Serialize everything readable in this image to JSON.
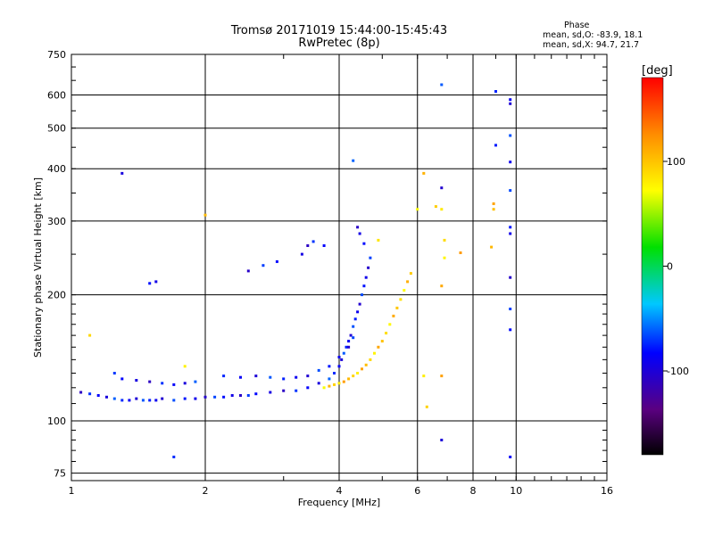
{
  "header": {
    "title_line1": "Tromsø 20171019 15:44:00-15:45:43",
    "title_line2": "RwPretec (8p)"
  },
  "phase_info": {
    "heading": "Phase",
    "line_o": "mean, sd,O: -83.9, 18.1",
    "line_x": "mean, sd,X:  94.7, 21.7"
  },
  "chart_data": {
    "type": "scatter",
    "xlabel": "Frequency [MHz]",
    "ylabel": "Stationary phase Virtual Height [km]",
    "x_scale": "log",
    "y_scale": "log",
    "xlim": [
      1,
      16
    ],
    "ylim": [
      72,
      750
    ],
    "x_ticks": [
      1,
      2,
      4,
      6,
      8,
      10,
      16
    ],
    "x_tick_labels": [
      "1",
      "2",
      "4",
      "6",
      "8",
      "10",
      "16"
    ],
    "y_ticks": [
      75,
      100,
      200,
      300,
      400,
      500,
      600,
      750
    ],
    "y_tick_labels": [
      "75",
      "100",
      "200",
      "300",
      "400",
      "500",
      "600",
      "750"
    ],
    "grid": true,
    "colorbar": {
      "label": "[deg]",
      "range": [
        -180,
        180
      ],
      "ticks": [
        -100,
        0,
        100
      ],
      "tick_labels": [
        "-100",
        "0",
        "100"
      ],
      "colormap": "rainbow (black → purple → blue → cyan → green → yellow → orange → red)"
    },
    "series": [
      {
        "mode": "O",
        "color_value_deg": -84,
        "points": [
          [
            1.05,
            117
          ],
          [
            1.1,
            116
          ],
          [
            1.15,
            115
          ],
          [
            1.2,
            114
          ],
          [
            1.25,
            113
          ],
          [
            1.3,
            112
          ],
          [
            1.35,
            112
          ],
          [
            1.4,
            113
          ],
          [
            1.45,
            112
          ],
          [
            1.5,
            112
          ],
          [
            1.55,
            112
          ],
          [
            1.6,
            113
          ],
          [
            1.7,
            112
          ],
          [
            1.8,
            113
          ],
          [
            1.9,
            113
          ],
          [
            2.0,
            114
          ],
          [
            2.1,
            114
          ],
          [
            2.2,
            114
          ],
          [
            2.3,
            115
          ],
          [
            2.4,
            115
          ],
          [
            2.5,
            115
          ],
          [
            2.6,
            116
          ],
          [
            2.8,
            117
          ],
          [
            3.0,
            118
          ],
          [
            3.2,
            118
          ],
          [
            3.4,
            120
          ],
          [
            3.6,
            123
          ],
          [
            3.8,
            126
          ],
          [
            3.9,
            130
          ],
          [
            4.0,
            135
          ],
          [
            4.05,
            140
          ],
          [
            4.1,
            145
          ],
          [
            4.15,
            150
          ],
          [
            4.2,
            155
          ],
          [
            4.25,
            160
          ],
          [
            4.3,
            168
          ],
          [
            4.35,
            175
          ],
          [
            4.4,
            182
          ],
          [
            4.45,
            190
          ],
          [
            4.5,
            200
          ],
          [
            4.55,
            210
          ],
          [
            4.6,
            220
          ],
          [
            4.65,
            232
          ],
          [
            4.7,
            245
          ],
          [
            4.55,
            265
          ],
          [
            4.45,
            280
          ],
          [
            4.4,
            290
          ],
          [
            1.25,
            130
          ],
          [
            1.3,
            126
          ],
          [
            1.4,
            125
          ],
          [
            1.5,
            124
          ],
          [
            1.6,
            123
          ],
          [
            1.7,
            122
          ],
          [
            1.8,
            123
          ],
          [
            1.9,
            124
          ],
          [
            2.2,
            128
          ],
          [
            2.4,
            127
          ],
          [
            2.6,
            128
          ],
          [
            2.8,
            127
          ],
          [
            3.0,
            126
          ],
          [
            3.2,
            127
          ],
          [
            3.4,
            128
          ],
          [
            3.6,
            132
          ],
          [
            3.8,
            135
          ],
          [
            4.0,
            142
          ],
          [
            4.2,
            150
          ],
          [
            4.3,
            158
          ],
          [
            1.5,
            213
          ],
          [
            1.55,
            215
          ],
          [
            2.5,
            228
          ],
          [
            2.7,
            235
          ],
          [
            2.9,
            240
          ],
          [
            3.3,
            250
          ],
          [
            3.4,
            262
          ],
          [
            3.5,
            268
          ],
          [
            3.7,
            262
          ],
          [
            1.3,
            390
          ],
          [
            4.3,
            418
          ],
          [
            1.7,
            82
          ],
          [
            9.7,
            82
          ],
          [
            6.8,
            90
          ],
          [
            6.8,
            635
          ],
          [
            9.0,
            612
          ],
          [
            9.7,
            585
          ],
          [
            9.7,
            572
          ],
          [
            9.7,
            480
          ],
          [
            9.0,
            455
          ],
          [
            9.7,
            415
          ],
          [
            6.8,
            360
          ],
          [
            9.7,
            355
          ],
          [
            9.7,
            290
          ],
          [
            9.7,
            280
          ],
          [
            9.7,
            220
          ],
          [
            9.7,
            185
          ],
          [
            9.7,
            165
          ]
        ]
      },
      {
        "mode": "X",
        "color_value_deg": 95,
        "points": [
          [
            3.7,
            120
          ],
          [
            3.8,
            121
          ],
          [
            3.9,
            122
          ],
          [
            4.0,
            123
          ],
          [
            4.1,
            124
          ],
          [
            4.2,
            126
          ],
          [
            4.3,
            128
          ],
          [
            4.4,
            130
          ],
          [
            4.5,
            133
          ],
          [
            4.6,
            136
          ],
          [
            4.7,
            140
          ],
          [
            4.8,
            145
          ],
          [
            4.9,
            150
          ],
          [
            5.0,
            155
          ],
          [
            5.1,
            162
          ],
          [
            5.2,
            170
          ],
          [
            5.3,
            178
          ],
          [
            5.4,
            186
          ],
          [
            5.5,
            195
          ],
          [
            5.6,
            205
          ],
          [
            5.7,
            215
          ],
          [
            5.8,
            225
          ],
          [
            4.9,
            270
          ],
          [
            6.0,
            320
          ],
          [
            6.2,
            390
          ],
          [
            6.6,
            325
          ],
          [
            6.8,
            320
          ],
          [
            7.5,
            252
          ],
          [
            8.8,
            260
          ],
          [
            6.3,
            108
          ],
          [
            6.2,
            128
          ],
          [
            6.8,
            128
          ],
          [
            2.0,
            310
          ],
          [
            1.1,
            160
          ],
          [
            1.8,
            135
          ],
          [
            8.9,
            330
          ],
          [
            8.9,
            320
          ],
          [
            6.9,
            270
          ],
          [
            6.9,
            245
          ],
          [
            6.8,
            210
          ]
        ]
      }
    ]
  }
}
